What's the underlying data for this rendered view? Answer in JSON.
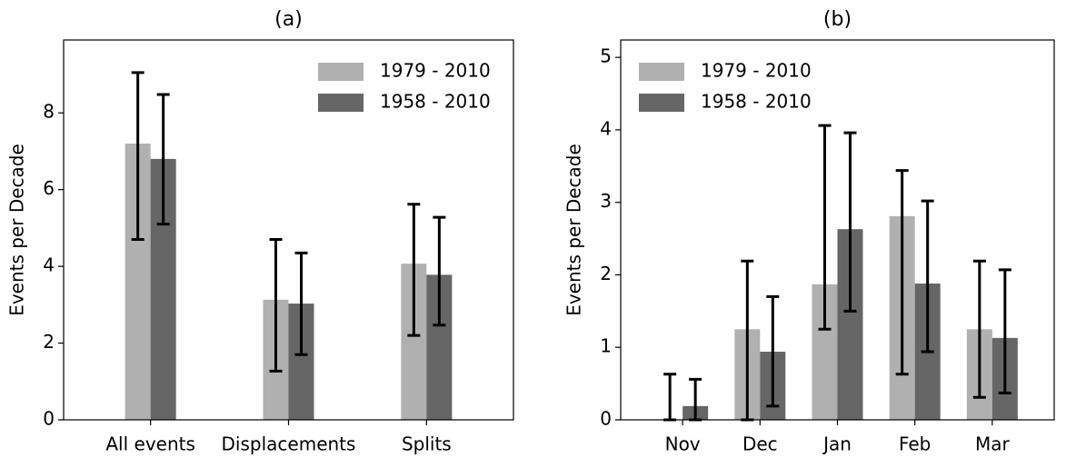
{
  "chart_data": [
    {
      "type": "bar",
      "title": "(a)",
      "y_label": "Events per Decade",
      "categories": [
        "All events",
        "Displacements",
        "Splits"
      ],
      "series": [
        {
          "name": "1979 - 2010",
          "color": "#b0b0b0",
          "values": [
            7.2,
            3.13,
            4.07
          ],
          "error_lower": [
            4.7,
            1.27,
            2.2
          ],
          "error_upper": [
            9.05,
            4.7,
            5.62
          ]
        },
        {
          "name": "1958 - 2010",
          "color": "#666666",
          "values": [
            6.8,
            3.03,
            3.78
          ],
          "error_lower": [
            5.1,
            1.7,
            2.47
          ],
          "error_upper": [
            8.48,
            4.35,
            5.28
          ]
        }
      ],
      "ylim": [
        0,
        9.9
      ],
      "yticks": [
        0,
        2,
        4,
        6,
        8
      ],
      "legend": "upper right"
    },
    {
      "type": "bar",
      "title": "(b)",
      "y_label": "Events per Decade",
      "categories": [
        "Nov",
        "Dec",
        "Jan",
        "Feb",
        "Mar"
      ],
      "series": [
        {
          "name": "1979 - 2010",
          "color": "#b0b0b0",
          "values": [
            0,
            1.25,
            1.87,
            2.81,
            1.25
          ],
          "error_lower": [
            0,
            0,
            1.25,
            0.63,
            0.31
          ],
          "error_upper": [
            0.63,
            2.19,
            4.06,
            3.44,
            2.19
          ]
        },
        {
          "name": "1958 - 2010",
          "color": "#666666",
          "values": [
            0.19,
            0.94,
            2.63,
            1.88,
            1.13
          ],
          "error_lower": [
            0,
            0.19,
            1.5,
            0.94,
            0.37
          ],
          "error_upper": [
            0.56,
            1.7,
            3.96,
            3.02,
            2.07
          ]
        }
      ],
      "ylim": [
        0,
        5.24
      ],
      "yticks": [
        0,
        1,
        2,
        3,
        4,
        5
      ],
      "legend": "upper left"
    }
  ]
}
